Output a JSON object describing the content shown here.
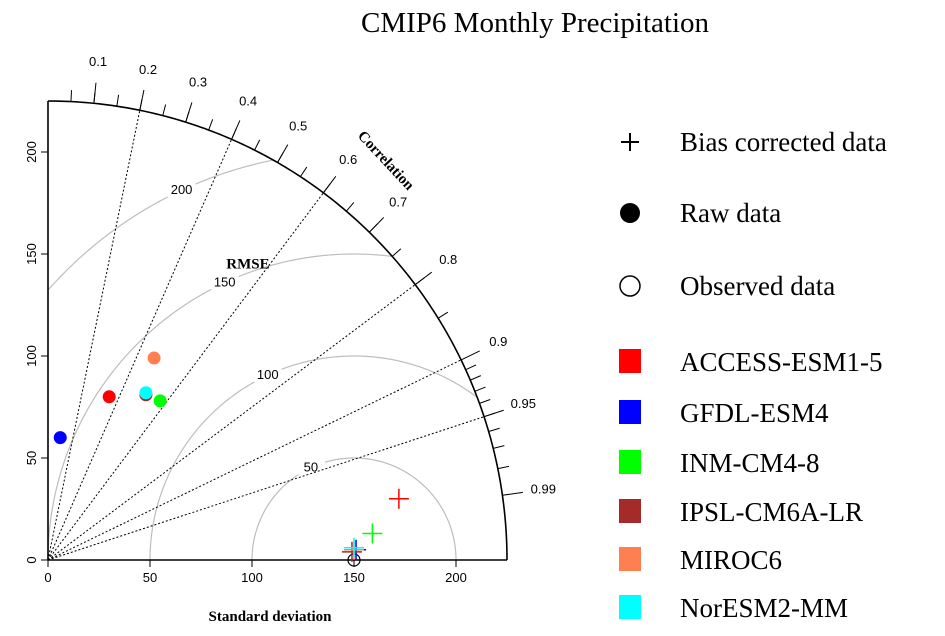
{
  "chart_data": {
    "type": "scatter",
    "subtype": "taylor-diagram",
    "title": "CMIP6 Monthly Precipitation",
    "xlabel": "Standard deviation",
    "correlation_label": "Correlation",
    "rmse_label": "RMSE",
    "sd_range": [
      0,
      225
    ],
    "sd_ticks": [
      0,
      50,
      100,
      150,
      200
    ],
    "correlation_ticks": [
      {
        "value": 0.1,
        "label": "0.1"
      },
      {
        "value": 0.2,
        "label": "0.2"
      },
      {
        "value": 0.3,
        "label": "0.3"
      },
      {
        "value": 0.4,
        "label": "0.4"
      },
      {
        "value": 0.5,
        "label": "0.5"
      },
      {
        "value": 0.6,
        "label": "0.6"
      },
      {
        "value": 0.7,
        "label": "0.7"
      },
      {
        "value": 0.8,
        "label": "0.8"
      },
      {
        "value": 0.9,
        "label": "0.9"
      },
      {
        "value": 0.95,
        "label": "0.95"
      },
      {
        "value": 0.99,
        "label": "0.99"
      }
    ],
    "correlation_rays": [
      0.2,
      0.4,
      0.6,
      0.8,
      0.9,
      0.95
    ],
    "rmse_contours": [
      {
        "value": 50,
        "label": "50"
      },
      {
        "value": 100,
        "label": "100"
      },
      {
        "value": 150,
        "label": "150"
      },
      {
        "value": 200,
        "label": "200"
      }
    ],
    "reference_sd": 150,
    "observed": {
      "x": 150,
      "y": 0
    },
    "series": [
      {
        "name": "ACCESS-ESM1-5",
        "color": "#ff0000",
        "raw": {
          "x": 30,
          "y": 80
        },
        "bias_corrected": {
          "x": 172,
          "y": 30
        }
      },
      {
        "name": "GFDL-ESM4",
        "color": "#0000ff",
        "raw": {
          "x": 6,
          "y": 60
        },
        "bias_corrected": {
          "x": 151,
          "y": 5
        }
      },
      {
        "name": "INM-CM4-8",
        "color": "#00ff00",
        "raw": {
          "x": 55,
          "y": 78
        },
        "bias_corrected": {
          "x": 159,
          "y": 13
        }
      },
      {
        "name": "IPSL-CM6A-LR",
        "color": "#a52a2a",
        "raw": {
          "x": 48,
          "y": 81
        },
        "bias_corrected": {
          "x": 149,
          "y": 4
        }
      },
      {
        "name": "MIROC6",
        "color": "#ff7f50",
        "raw": {
          "x": 52,
          "y": 99
        },
        "bias_corrected": {
          "x": 150,
          "y": 5
        }
      },
      {
        "name": "NorESM2-MM",
        "color": "#00ffff",
        "raw": {
          "x": 48,
          "y": 82
        },
        "bias_corrected": {
          "x": 150,
          "y": 6
        }
      }
    ],
    "legend": {
      "position": "right",
      "symbols": [
        {
          "symbol": "plus",
          "label": "Bias corrected data"
        },
        {
          "symbol": "filled-circle",
          "label": "Raw data"
        },
        {
          "symbol": "open-circle",
          "label": "Observed data"
        }
      ]
    }
  }
}
